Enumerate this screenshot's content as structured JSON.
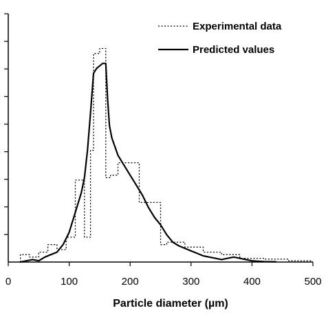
{
  "chart_data": {
    "type": "line",
    "title": "",
    "xlabel": "Particle diameter (µm)",
    "ylabel": "",
    "xlim": [
      0,
      500
    ],
    "ylim": [
      0,
      1
    ],
    "x_ticks": [
      0,
      100,
      200,
      300,
      400,
      500
    ],
    "y_tick_count": 9,
    "grid": false,
    "legend_position": "top-right",
    "series": [
      {
        "name": "Experimental data",
        "style": "dotted",
        "color": "#000000",
        "x": [
          20,
          20,
          35,
          35,
          50,
          50,
          65,
          65,
          80,
          80,
          95,
          95,
          110,
          110,
          125,
          125,
          135,
          135,
          140,
          140,
          150,
          150,
          160,
          160,
          168,
          168,
          180,
          180,
          190,
          190,
          215,
          215,
          230,
          230,
          250,
          250,
          260,
          260,
          290,
          290,
          320,
          320,
          350,
          350,
          380,
          380,
          420,
          420,
          460,
          460,
          500
        ],
        "y": [
          0,
          0.03,
          0.03,
          0.02,
          0.02,
          0.04,
          0.04,
          0.07,
          0.07,
          0.05,
          0.05,
          0.1,
          0.1,
          0.33,
          0.33,
          0.1,
          0.1,
          0.45,
          0.45,
          0.84,
          0.84,
          0.86,
          0.86,
          0.34,
          0.34,
          0.35,
          0.35,
          0.4,
          0.4,
          0.4,
          0.4,
          0.24,
          0.24,
          0.24,
          0.24,
          0.07,
          0.07,
          0.08,
          0.08,
          0.06,
          0.06,
          0.04,
          0.04,
          0.03,
          0.03,
          0.015,
          0.015,
          0.012,
          0.012,
          0.005,
          0.005
        ]
      },
      {
        "name": "Predicted values",
        "style": "solid",
        "color": "#000000",
        "x": [
          20,
          30,
          40,
          50,
          60,
          70,
          80,
          90,
          100,
          110,
          120,
          125,
          130,
          135,
          140,
          145,
          150,
          155,
          160,
          163,
          166,
          170,
          180,
          190,
          200,
          210,
          220,
          230,
          240,
          250,
          260,
          270,
          280,
          290,
          300,
          310,
          320,
          330,
          340,
          350,
          360,
          370,
          380,
          390,
          400,
          420,
          440
        ],
        "y": [
          0.0,
          0.005,
          0.01,
          0.005,
          0.02,
          0.03,
          0.04,
          0.07,
          0.12,
          0.2,
          0.28,
          0.34,
          0.45,
          0.6,
          0.76,
          0.78,
          0.79,
          0.8,
          0.8,
          0.66,
          0.55,
          0.5,
          0.43,
          0.39,
          0.35,
          0.31,
          0.27,
          0.22,
          0.18,
          0.15,
          0.11,
          0.08,
          0.065,
          0.055,
          0.045,
          0.035,
          0.025,
          0.02,
          0.015,
          0.01,
          0.015,
          0.02,
          0.015,
          0.01,
          0.005,
          0.002,
          0.001
        ]
      }
    ]
  }
}
